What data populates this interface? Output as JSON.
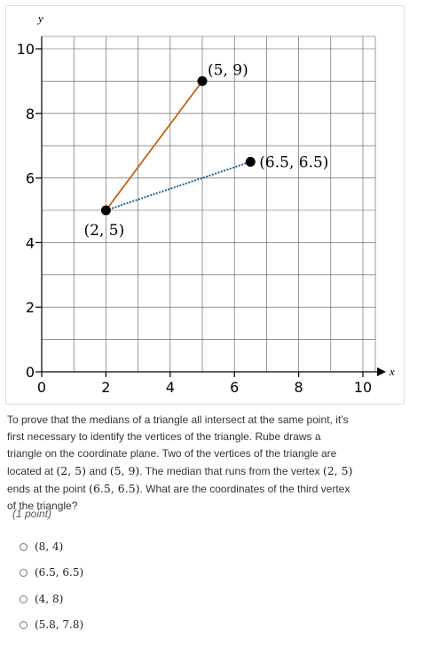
{
  "chart_data": {
    "type": "scatter",
    "xlabel": "x",
    "ylabel": "y",
    "xlim": [
      0,
      10
    ],
    "ylim": [
      0,
      10
    ],
    "x_ticks": [
      "0",
      "2",
      "4",
      "6",
      "8",
      "10"
    ],
    "y_ticks": [
      "0",
      "2",
      "4",
      "6",
      "8",
      "10"
    ],
    "grid": true,
    "points": [
      {
        "x": 2,
        "y": 5,
        "label": "(2, 5)"
      },
      {
        "x": 5,
        "y": 9,
        "label": "(5, 9)"
      },
      {
        "x": 6.5,
        "y": 6.5,
        "label": "(6.5, 6.5)"
      }
    ],
    "segments": [
      {
        "from": [
          2,
          5
        ],
        "to": [
          5,
          9
        ],
        "style": "solid",
        "color": "#c0661c"
      },
      {
        "from": [
          2,
          5
        ],
        "to": [
          6.5,
          6.5
        ],
        "style": "dotted",
        "color": "#1f5f9e"
      }
    ]
  },
  "question": {
    "t1": "To prove that the medians of a triangle all intersect at the same point, it’s first necessary to identify the vertices of the triangle. Rube draws a triangle on the coordinate plane. Two of the vertices of the triangle are located at ",
    "m1": "(2, 5)",
    "t2": " and ",
    "m2": "(5, 9)",
    "t3": ". The median that runs from the vertex ",
    "m3": "(2, 5)",
    "t4": " ends at the point ",
    "m4": "(6.5, 6.5)",
    "t5": ". What are the coordinates of the third vertex of the triangle?",
    "points_label": "(1 point)"
  },
  "options": [
    "(8, 4)",
    "(6.5, 6.5)",
    "(4, 8)",
    "(5.8, 7.8)"
  ]
}
